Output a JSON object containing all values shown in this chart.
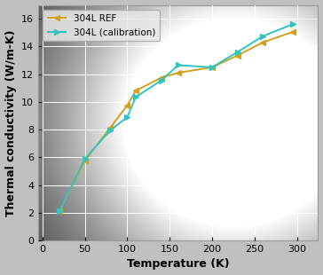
{
  "ref_x": [
    20,
    50,
    80,
    100,
    110,
    140,
    160,
    200,
    230,
    260,
    295
  ],
  "ref_y": [
    2.1,
    5.75,
    8.15,
    9.75,
    10.8,
    11.75,
    12.1,
    12.5,
    13.35,
    14.3,
    15.05
  ],
  "cal_x": [
    20,
    50,
    80,
    100,
    110,
    140,
    160,
    200,
    230,
    260,
    295
  ],
  "cal_y": [
    2.1,
    5.9,
    7.95,
    8.9,
    10.35,
    11.55,
    12.65,
    12.5,
    13.6,
    14.75,
    15.6
  ],
  "ref_color": "#D4A020",
  "cal_color": "#30C5C0",
  "ref_label": "304L REF",
  "cal_label": "304L (calibration)",
  "xlabel": "Temperature (K)",
  "ylabel": "Thermal conductivity (W/m-K)",
  "xlim": [
    -5,
    325
  ],
  "ylim": [
    0,
    17
  ],
  "xticks": [
    0,
    50,
    100,
    150,
    200,
    250,
    300
  ],
  "yticks": [
    0,
    2,
    4,
    6,
    8,
    10,
    12,
    14,
    16
  ],
  "bg_outer": "#b8b8b8",
  "bg_inner": "#d8d8d8",
  "grid_color": "#ffffff",
  "linewidth": 1.4,
  "markersize": 5
}
